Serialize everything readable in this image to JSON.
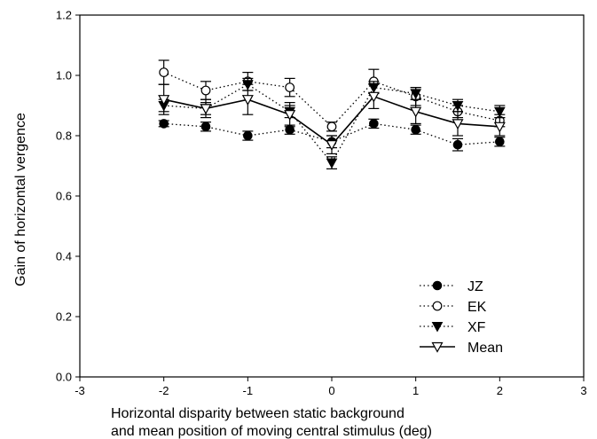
{
  "chart_data": {
    "type": "line",
    "title": "",
    "xlabel_lines": [
      "Horizontal disparity between static background",
      "and mean position of moving central stimulus (deg)"
    ],
    "ylabel": "Gain of horizontal vergence",
    "xlim": [
      -3,
      3
    ],
    "ylim": [
      0,
      1.2
    ],
    "x_ticks": [
      -3,
      -2,
      -1,
      0,
      1,
      2,
      3
    ],
    "y_ticks": [
      0.0,
      0.2,
      0.4,
      0.6,
      0.8,
      1.0,
      1.2
    ],
    "x_tick_labels": [
      "-3",
      "-2",
      "-1",
      "0",
      "1",
      "2",
      "3"
    ],
    "y_tick_labels": [
      "0.0",
      "0.2",
      "0.4",
      "0.6",
      "0.8",
      "1.0",
      "1.2"
    ],
    "grid": false,
    "legend_position": "bottom-right",
    "x": [
      -2,
      -1.5,
      -1,
      -0.5,
      0,
      0.5,
      1,
      1.5,
      2
    ],
    "series": [
      {
        "name": "JZ",
        "marker": "filled-circle",
        "line": "dotted",
        "values": [
          0.84,
          0.83,
          0.8,
          0.82,
          0.78,
          0.84,
          0.82,
          0.77,
          0.78
        ],
        "errors": [
          0.01,
          0.015,
          0.015,
          0.015,
          0.02,
          0.015,
          0.015,
          0.02,
          0.015
        ]
      },
      {
        "name": "EK",
        "marker": "open-circle",
        "line": "dotted",
        "values": [
          1.01,
          0.95,
          0.98,
          0.96,
          0.83,
          0.98,
          0.93,
          0.88,
          0.85
        ],
        "errors": [
          0.04,
          0.03,
          0.03,
          0.03,
          0.015,
          0.04,
          0.03,
          0.02,
          0.02
        ]
      },
      {
        "name": "XF",
        "marker": "filled-triangle-down",
        "line": "dotted",
        "values": [
          0.9,
          0.89,
          0.97,
          0.88,
          0.71,
          0.96,
          0.94,
          0.9,
          0.88
        ],
        "errors": [
          0.02,
          0.02,
          0.02,
          0.02,
          0.02,
          0.02,
          0.02,
          0.02,
          0.02
        ]
      },
      {
        "name": "Mean",
        "marker": "open-triangle-down",
        "line": "solid",
        "values": [
          0.92,
          0.89,
          0.92,
          0.87,
          0.77,
          0.93,
          0.88,
          0.84,
          0.83
        ],
        "errors": [
          0.05,
          0.03,
          0.05,
          0.04,
          0.03,
          0.04,
          0.04,
          0.04,
          0.03
        ]
      }
    ]
  }
}
